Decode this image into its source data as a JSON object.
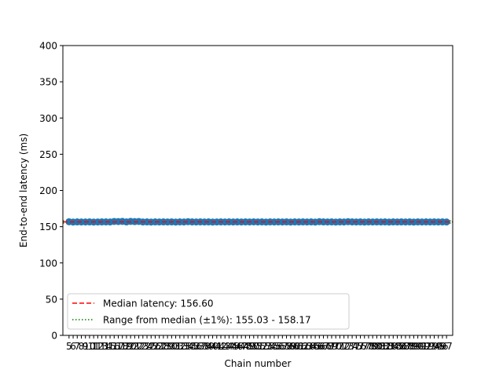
{
  "chart_data": {
    "type": "scatter",
    "title": "",
    "xlabel": "Chain number",
    "ylabel": "End-to-end latency (ms)",
    "ylim": [
      0,
      400
    ],
    "xlim": [
      3.5,
      98.5
    ],
    "yticks": [
      0,
      50,
      100,
      150,
      200,
      250,
      300,
      350,
      400
    ],
    "x": [
      5,
      6,
      7,
      8,
      9,
      10,
      11,
      12,
      13,
      14,
      15,
      16,
      17,
      18,
      19,
      20,
      21,
      22,
      23,
      24,
      25,
      26,
      27,
      28,
      29,
      30,
      31,
      32,
      33,
      34,
      35,
      36,
      37,
      38,
      39,
      40,
      41,
      42,
      43,
      44,
      45,
      46,
      47,
      48,
      49,
      50,
      51,
      52,
      53,
      54,
      55,
      56,
      57,
      58,
      59,
      60,
      61,
      62,
      63,
      64,
      65,
      66,
      67,
      68,
      69,
      70,
      71,
      72,
      73,
      74,
      75,
      76,
      77,
      78,
      79,
      80,
      81,
      82,
      83,
      84,
      85,
      86,
      87,
      88,
      89,
      90,
      91,
      92,
      93,
      94,
      95,
      96,
      97
    ],
    "y": [
      156.8,
      156.4,
      156.6,
      156.5,
      156.5,
      156.6,
      156.4,
      156.5,
      156.6,
      156.6,
      156.5,
      157.2,
      157.1,
      157.3,
      156.6,
      157.3,
      157.0,
      157.2,
      156.5,
      156.6,
      156.4,
      156.6,
      156.5,
      156.6,
      156.5,
      156.6,
      156.4,
      156.6,
      156.5,
      156.9,
      156.6,
      156.5,
      156.6,
      156.5,
      156.6,
      156.4,
      156.5,
      156.6,
      156.5,
      156.6,
      156.5,
      156.6,
      156.5,
      156.6,
      156.5,
      156.7,
      156.5,
      156.6,
      156.4,
      156.6,
      156.5,
      156.6,
      156.5,
      156.6,
      156.4,
      156.6,
      156.5,
      156.6,
      156.5,
      156.6,
      156.4,
      156.9,
      156.6,
      156.5,
      156.6,
      156.4,
      156.6,
      156.5,
      156.9,
      156.6,
      156.5,
      156.6,
      156.4,
      156.6,
      156.5,
      156.6,
      156.5,
      156.6,
      156.4,
      156.6,
      156.5,
      156.6,
      156.5,
      156.6,
      156.4,
      156.6,
      156.5,
      156.6,
      156.5,
      156.6,
      156.5,
      156.6,
      156.5
    ],
    "marker_color": "#1f77b4",
    "median": {
      "value": 156.6,
      "color": "#ff0000",
      "style": "dashed"
    },
    "range": {
      "low": 155.03,
      "high": 158.17,
      "color": "#008000",
      "style": "dotted"
    },
    "legend": {
      "placement": "lower-left",
      "entries": [
        "Median latency: 156.60",
        "Range from median (±1%): 155.03 - 158.17"
      ]
    },
    "grid": false
  }
}
